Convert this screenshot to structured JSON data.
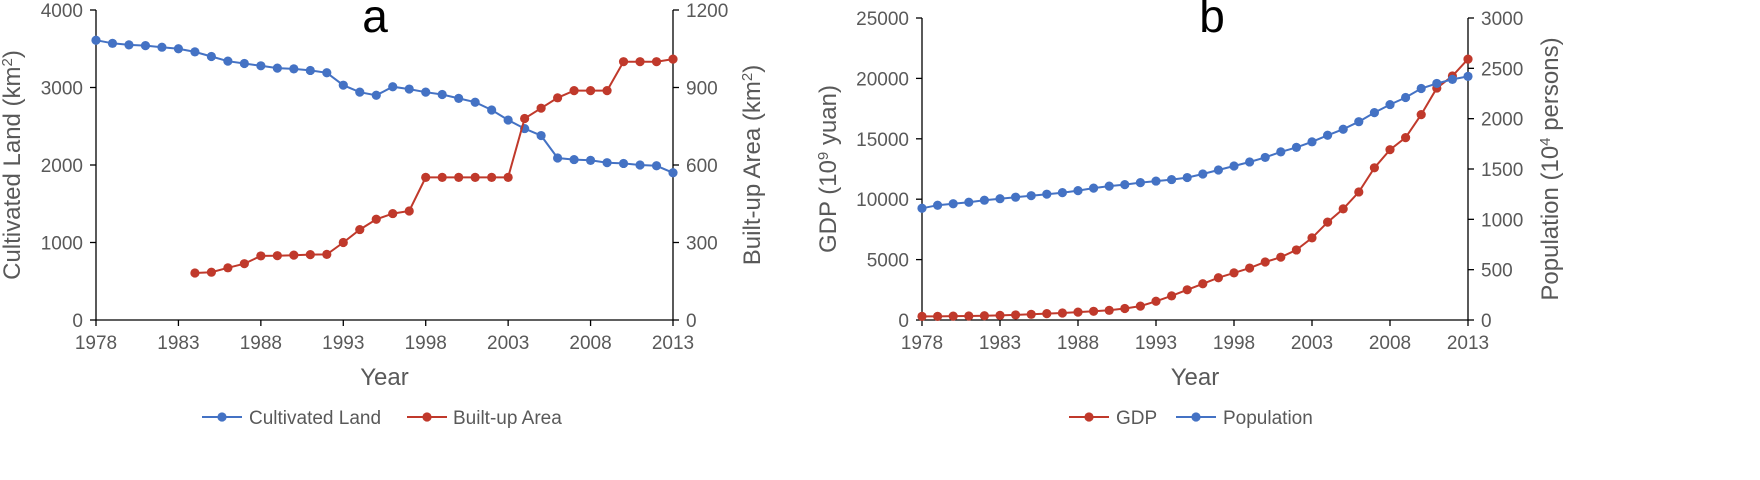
{
  "chart_data": [
    {
      "type": "line",
      "panel_label": "a",
      "xlabel": "Year",
      "ylabel_left": "Cultivated Land (km",
      "ylabel_left_sup": "2",
      "ylabel_left_end": ")",
      "ylabel_right": "Built-up Area (km",
      "ylabel_right_sup": "2",
      "ylabel_right_end": ")",
      "xlim": [
        1978,
        2013
      ],
      "xticks": [
        "1978",
        "1983",
        "1988",
        "1993",
        "1998",
        "2003",
        "2008",
        "2013"
      ],
      "ylim_left": [
        0,
        4000
      ],
      "yticks_left": [
        "0",
        "1000",
        "2000",
        "3000",
        "4000"
      ],
      "ylim_right": [
        0,
        1200
      ],
      "yticks_right": [
        "0",
        "300",
        "600",
        "900",
        "1200"
      ],
      "grid": false,
      "legend_position": "bottom",
      "series": [
        {
          "name": "Cultivated Land",
          "axis": "left",
          "color": "#4472C4",
          "x": [
            1978,
            1979,
            1980,
            1981,
            1982,
            1983,
            1984,
            1985,
            1986,
            1987,
            1988,
            1989,
            1990,
            1991,
            1992,
            1993,
            1994,
            1995,
            1996,
            1997,
            1998,
            1999,
            2000,
            2001,
            2002,
            2003,
            2004,
            2005,
            2006,
            2007,
            2008,
            2009,
            2010,
            2011,
            2012,
            2013
          ],
          "values": [
            3610,
            3570,
            3550,
            3540,
            3520,
            3500,
            3460,
            3400,
            3340,
            3310,
            3280,
            3250,
            3240,
            3220,
            3190,
            3030,
            2940,
            2900,
            3010,
            2980,
            2940,
            2910,
            2860,
            2810,
            2710,
            2580,
            2470,
            2380,
            2090,
            2070,
            2060,
            2030,
            2020,
            2000,
            1990,
            1900
          ]
        },
        {
          "name": "Built-up Area",
          "axis": "right",
          "color": "#C0392B",
          "x": [
            1984,
            1985,
            1986,
            1987,
            1988,
            1989,
            1990,
            1991,
            1992,
            1993,
            1994,
            1995,
            1996,
            1997,
            1998,
            1999,
            2000,
            2001,
            2002,
            2003,
            2004,
            2005,
            2006,
            2007,
            2008,
            2009,
            2010,
            2011,
            2012,
            2013
          ],
          "values": [
            182,
            185,
            202,
            218,
            248,
            249,
            251,
            253,
            254,
            300,
            350,
            390,
            412,
            422,
            552,
            552,
            552,
            552,
            552,
            552,
            780,
            820,
            860,
            888,
            888,
            888,
            1000,
            1000,
            1000,
            1010
          ]
        }
      ]
    },
    {
      "type": "line",
      "panel_label": "b",
      "xlabel": "Year",
      "ylabel_left": "GDP (10",
      "ylabel_left_sup": "9",
      "ylabel_left_end": " yuan)",
      "ylabel_right": "Population (10",
      "ylabel_right_sup": "4",
      "ylabel_right_end": " persons)",
      "xlim": [
        1978,
        2013
      ],
      "xticks": [
        "1978",
        "1983",
        "1988",
        "1993",
        "1998",
        "2003",
        "2008",
        "2013"
      ],
      "ylim_left": [
        0,
        25000
      ],
      "yticks_left": [
        "0",
        "5000",
        "10000",
        "15000",
        "20000",
        "25000"
      ],
      "ylim_right": [
        0,
        3000
      ],
      "yticks_right": [
        "0",
        "500",
        "1000",
        "1500",
        "2000",
        "2500",
        "3000"
      ],
      "grid": false,
      "legend_position": "bottom",
      "series": [
        {
          "name": "GDP",
          "axis": "left",
          "color": "#C0392B",
          "x": [
            1978,
            1979,
            1980,
            1981,
            1982,
            1983,
            1984,
            1985,
            1986,
            1987,
            1988,
            1989,
            1990,
            1991,
            1992,
            1993,
            1994,
            1995,
            1996,
            1997,
            1998,
            1999,
            2000,
            2001,
            2002,
            2003,
            2004,
            2005,
            2006,
            2007,
            2008,
            2009,
            2010,
            2011,
            2012,
            2013
          ],
          "values": [
            300,
            300,
            320,
            330,
            350,
            380,
            420,
            470,
            530,
            580,
            650,
            720,
            800,
            950,
            1150,
            1550,
            2000,
            2500,
            3000,
            3500,
            3900,
            4300,
            4800,
            5200,
            5800,
            6800,
            8100,
            9200,
            10600,
            12600,
            14100,
            15100,
            17000,
            19200,
            20200,
            21600
          ]
        },
        {
          "name": "Population",
          "axis": "right",
          "color": "#4472C4",
          "x": [
            1978,
            1979,
            1980,
            1981,
            1982,
            1983,
            1984,
            1985,
            1986,
            1987,
            1988,
            1989,
            1990,
            1991,
            1992,
            1993,
            1994,
            1995,
            1996,
            1997,
            1998,
            1999,
            2000,
            2001,
            2002,
            2003,
            2004,
            2005,
            2006,
            2007,
            2008,
            2009,
            2010,
            2011,
            2012,
            2013
          ],
          "values": [
            1110,
            1140,
            1155,
            1170,
            1190,
            1205,
            1220,
            1235,
            1250,
            1265,
            1285,
            1310,
            1330,
            1345,
            1365,
            1380,
            1395,
            1415,
            1450,
            1490,
            1530,
            1570,
            1615,
            1670,
            1715,
            1770,
            1835,
            1895,
            1970,
            2060,
            2140,
            2210,
            2300,
            2350,
            2390,
            2420
          ]
        }
      ]
    }
  ]
}
